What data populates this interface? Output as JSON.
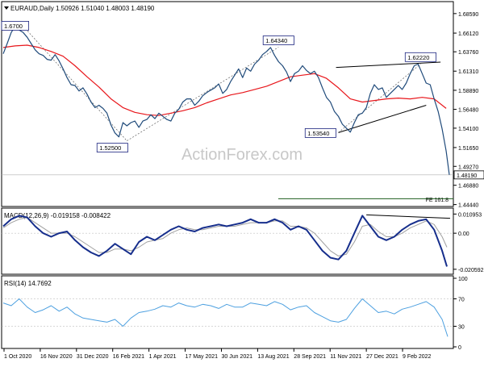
{
  "header": {
    "symbol_line": "EURAUD,Daily  1.50926 1.51040 1.48003 1.48190",
    "arrow_icon": "triangle-down-icon"
  },
  "watermark": "ActionForex.com",
  "colors": {
    "price": "#1f4a7a",
    "ma": "#e8161b",
    "macd": "#162e8c",
    "macd_signal": "#a0a0a0",
    "rsi": "#4da0e0",
    "trendline": "#000000",
    "fe_line": "#1e5e1e",
    "label_border": "#1a237e",
    "axis_text": "#000000"
  },
  "chart_data": [
    {
      "type": "line",
      "panel": "price",
      "title": "EURAUD,Daily",
      "quote": {
        "open": "1.50926",
        "high": "1.51040",
        "low": "1.48003",
        "close": "1.48190"
      },
      "y_ticks": [
        "1.68590",
        "1.66120",
        "1.63760",
        "1.61310",
        "1.58890",
        "1.56480",
        "1.54100",
        "1.51650",
        "1.49270",
        "1.46880",
        "1.44440"
      ],
      "ylim": [
        1.444,
        1.699
      ],
      "last_price_label": "1.48190",
      "x_ticks": [
        "1 Oct 2020",
        "16 Nov 2020",
        "31 Dec 2020",
        "16 Feb 2021",
        "1 Apr 2021",
        "17 May 2021",
        "30 Jun 2021",
        "13 Aug 2021",
        "28 Sep 2021",
        "11 Nov 2021",
        "27 Dec 2021",
        "9 Feb 2022"
      ],
      "series": [
        {
          "key": "price",
          "x": [
            0,
            5,
            10,
            15,
            20,
            25,
            30,
            35,
            40,
            45,
            50,
            55,
            60,
            65,
            70,
            75,
            80,
            85,
            90,
            95,
            100,
            105,
            110,
            115,
            120,
            125,
            130,
            135,
            140,
            145,
            150,
            155,
            160,
            165,
            170,
            175,
            180,
            185,
            190,
            195,
            200,
            205,
            210,
            215,
            220,
            225,
            230,
            235,
            240,
            245,
            250,
            255,
            260,
            265,
            270,
            275,
            280,
            285,
            290,
            295,
            300,
            305,
            310,
            315,
            320,
            325,
            330,
            335,
            340,
            345,
            350,
            355,
            360,
            365,
            370,
            375,
            380,
            385,
            390,
            395,
            400,
            405,
            410,
            415,
            420,
            425,
            430,
            435,
            440,
            445,
            450,
            455,
            460,
            465,
            470,
            475,
            480,
            485,
            490,
            495,
            500,
            505,
            510,
            515,
            520,
            525,
            530,
            535,
            540,
            545,
            550,
            555,
            559
          ],
          "values": [
            1.635,
            1.648,
            1.662,
            1.67,
            1.665,
            1.662,
            1.656,
            1.648,
            1.64,
            1.635,
            1.633,
            1.628,
            1.627,
            1.634,
            1.626,
            1.616,
            1.605,
            1.596,
            1.595,
            1.588,
            1.592,
            1.584,
            1.574,
            1.567,
            1.57,
            1.566,
            1.56,
            1.545,
            1.535,
            1.53,
            1.548,
            1.544,
            1.548,
            1.55,
            1.542,
            1.55,
            1.552,
            1.558,
            1.553,
            1.56,
            1.556,
            1.552,
            1.55,
            1.56,
            1.565,
            1.574,
            1.578,
            1.578,
            1.57,
            1.575,
            1.582,
            1.586,
            1.589,
            1.592,
            1.597,
            1.585,
            1.59,
            1.6,
            1.608,
            1.616,
            1.605,
            1.617,
            1.613,
            1.622,
            1.627,
            1.634,
            1.638,
            1.643,
            1.633,
            1.625,
            1.62,
            1.612,
            1.6,
            1.61,
            1.613,
            1.62,
            1.614,
            1.61,
            1.613,
            1.605,
            1.592,
            1.58,
            1.574,
            1.562,
            1.556,
            1.546,
            1.541,
            1.536,
            1.548,
            1.558,
            1.56,
            1.567,
            1.585,
            1.596,
            1.59,
            1.592,
            1.58,
            1.585,
            1.59,
            1.595,
            1.59,
            1.598,
            1.61,
            1.62,
            1.622,
            1.61,
            1.598,
            1.596,
            1.578,
            1.562,
            1.54,
            1.512,
            1.482
          ]
        },
        {
          "key": "ma",
          "x": [
            0,
            15,
            30,
            45,
            60,
            75,
            90,
            105,
            120,
            135,
            150,
            165,
            180,
            195,
            210,
            225,
            240,
            255,
            270,
            285,
            300,
            315,
            330,
            345,
            360,
            375,
            390,
            405,
            420,
            435,
            450,
            465,
            480,
            495,
            510,
            525,
            540,
            555
          ],
          "values": [
            1.643,
            1.645,
            1.646,
            1.643,
            1.638,
            1.632,
            1.62,
            1.606,
            1.593,
            1.578,
            1.567,
            1.561,
            1.558,
            1.557,
            1.56,
            1.563,
            1.567,
            1.573,
            1.578,
            1.583,
            1.586,
            1.59,
            1.594,
            1.6,
            1.606,
            1.608,
            1.61,
            1.604,
            1.592,
            1.578,
            1.574,
            1.576,
            1.578,
            1.579,
            1.578,
            1.58,
            1.578,
            1.566
          ]
        }
      ],
      "annotations": [
        {
          "text": "1.6700",
          "x": 8,
          "y": 1.67
        },
        {
          "text": "1.52500",
          "x": 155,
          "y": 1.525
        },
        {
          "text": "1.64340",
          "x": 345,
          "y": 1.6434
        },
        {
          "text": "1.53540",
          "x": 423,
          "y": 1.5354
        },
        {
          "text": "1.62220",
          "x": 523,
          "y": 1.6222
        }
      ],
      "fe_label": "FE 161.8",
      "fe_level": 1.4518
    },
    {
      "type": "line",
      "panel": "macd",
      "title": "MACD(12,26,9) -0.019158 -0.008422",
      "y_ticks": [
        "0.010953",
        "0.00",
        "-0.020592"
      ],
      "ylim": [
        -0.0225,
        0.0125
      ],
      "series": [
        {
          "key": "macd",
          "x": [
            0,
            10,
            20,
            30,
            40,
            50,
            60,
            70,
            80,
            90,
            100,
            110,
            120,
            130,
            140,
            150,
            160,
            170,
            180,
            190,
            200,
            210,
            220,
            230,
            240,
            250,
            260,
            270,
            280,
            290,
            300,
            310,
            320,
            330,
            340,
            350,
            360,
            370,
            380,
            390,
            400,
            410,
            420,
            430,
            440,
            450,
            460,
            470,
            480,
            490,
            500,
            510,
            520,
            530,
            540,
            550,
            556
          ],
          "values": [
            0.004,
            0.008,
            0.01,
            0.009,
            0.004,
            0.0,
            -0.002,
            0.0,
            0.001,
            -0.004,
            -0.008,
            -0.011,
            -0.013,
            -0.01,
            -0.006,
            -0.009,
            -0.012,
            -0.005,
            -0.002,
            -0.004,
            -0.001,
            0.002,
            0.004,
            0.002,
            0.001,
            0.003,
            0.004,
            0.005,
            0.004,
            0.005,
            0.006,
            0.008,
            0.006,
            0.006,
            0.008,
            0.006,
            0.002,
            0.004,
            0.002,
            -0.004,
            -0.01,
            -0.014,
            -0.015,
            -0.01,
            0.0,
            0.01,
            0.004,
            -0.002,
            -0.004,
            -0.002,
            0.002,
            0.005,
            0.007,
            0.008,
            0.002,
            -0.01,
            -0.019
          ]
        },
        {
          "key": "signal",
          "x": [
            0,
            10,
            20,
            30,
            40,
            50,
            60,
            70,
            80,
            90,
            100,
            110,
            120,
            130,
            140,
            150,
            160,
            170,
            180,
            190,
            200,
            210,
            220,
            230,
            240,
            250,
            260,
            270,
            280,
            290,
            300,
            310,
            320,
            330,
            340,
            350,
            360,
            370,
            380,
            390,
            400,
            410,
            420,
            430,
            440,
            450,
            460,
            470,
            480,
            490,
            500,
            510,
            520,
            530,
            540,
            550,
            556
          ],
          "values": [
            0.003,
            0.006,
            0.008,
            0.009,
            0.006,
            0.003,
            0.0,
            0.0,
            0.0,
            -0.002,
            -0.005,
            -0.008,
            -0.011,
            -0.011,
            -0.009,
            -0.009,
            -0.01,
            -0.008,
            -0.005,
            -0.004,
            -0.003,
            0.0,
            0.002,
            0.003,
            0.002,
            0.002,
            0.003,
            0.004,
            0.004,
            0.004,
            0.005,
            0.006,
            0.006,
            0.006,
            0.007,
            0.007,
            0.004,
            0.004,
            0.003,
            0.0,
            -0.005,
            -0.01,
            -0.013,
            -0.012,
            -0.005,
            0.004,
            0.005,
            0.001,
            -0.002,
            -0.002,
            0.0,
            0.003,
            0.005,
            0.007,
            0.005,
            -0.002,
            -0.008
          ]
        }
      ]
    },
    {
      "type": "line",
      "panel": "rsi",
      "title": "RSI(14) 14.7692",
      "y_ticks": [
        "100",
        "70",
        "30",
        "0"
      ],
      "ylim": [
        0,
        100
      ],
      "levels": [
        70,
        30
      ],
      "series": [
        {
          "key": "rsi",
          "x": [
            0,
            10,
            20,
            30,
            40,
            50,
            60,
            70,
            80,
            90,
            100,
            110,
            120,
            130,
            140,
            150,
            160,
            170,
            180,
            190,
            200,
            210,
            220,
            230,
            240,
            250,
            260,
            270,
            280,
            290,
            300,
            310,
            320,
            330,
            340,
            350,
            360,
            370,
            380,
            390,
            400,
            410,
            420,
            430,
            440,
            450,
            460,
            470,
            480,
            490,
            500,
            510,
            520,
            530,
            540,
            550,
            557
          ],
          "values": [
            64,
            60,
            70,
            58,
            50,
            54,
            60,
            52,
            58,
            48,
            42,
            40,
            38,
            36,
            40,
            30,
            42,
            50,
            52,
            55,
            60,
            58,
            64,
            60,
            58,
            62,
            60,
            56,
            62,
            58,
            58,
            64,
            62,
            60,
            66,
            62,
            54,
            58,
            60,
            50,
            44,
            38,
            36,
            40,
            56,
            70,
            60,
            50,
            52,
            48,
            55,
            58,
            62,
            66,
            58,
            40,
            15
          ]
        }
      ]
    }
  ]
}
